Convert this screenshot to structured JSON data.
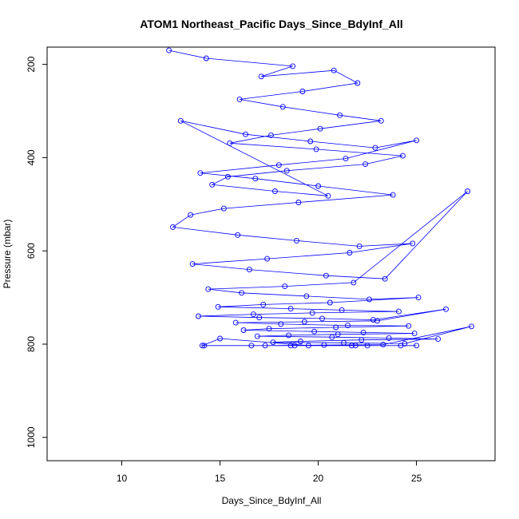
{
  "chart_data": {
    "type": "scatter",
    "title": "ATOM1 Northeast_Pacific Days_Since_BdyInf_All",
    "xlabel": "Days_Since_BdyInf_All",
    "ylabel": "Pressure (mbar)",
    "xlim": [
      6.2,
      29.0
    ],
    "ylim": [
      1050,
      163
    ],
    "y_inverted": true,
    "x_ticks": [
      10,
      15,
      20,
      25
    ],
    "y_ticks": [
      200,
      400,
      600,
      800,
      1000
    ],
    "x_tick_labels": [
      "10",
      "15",
      "20",
      "25"
    ],
    "y_tick_labels": [
      "200",
      "400",
      "600",
      "800",
      "1000"
    ],
    "grid": false,
    "legend": "none",
    "color": "#0000ff",
    "markers": "open-circle",
    "connected": true,
    "series": [
      {
        "x": [
          12.4,
          14.3,
          18.7,
          17.1,
          20.8,
          22.0,
          19.2,
          16.0,
          18.2,
          21.1,
          23.2,
          20.1,
          17.6,
          15.5,
          19.9,
          24.3,
          22.4,
          18.4,
          15.4,
          14.6,
          17.8,
          20.5,
          13.0,
          16.3,
          19.6,
          22.9,
          25.0,
          21.4,
          18.0,
          14.0,
          16.8,
          20.0,
          23.8,
          19.0,
          15.2,
          13.5,
          12.6,
          15.9,
          18.9,
          22.1,
          24.8,
          21.6,
          17.4,
          13.6,
          16.5,
          20.4,
          23.4,
          27.6,
          21.8,
          18.3,
          14.4,
          16.1,
          19.4,
          22.6,
          25.1,
          20.6,
          17.2,
          14.9,
          18.6,
          21.2,
          24.1,
          19.7,
          16.7,
          13.9,
          17.0,
          20.2,
          22.8,
          26.5,
          23.0,
          19.3,
          15.8,
          18.1,
          21.5,
          24.6,
          20.9,
          17.5,
          16.2,
          19.8,
          22.3,
          24.9,
          21.0,
          18.5,
          16.9,
          20.7,
          23.6,
          26.1,
          22.2,
          19.1,
          17.7,
          21.3,
          24.4,
          27.8,
          23.3,
          20.3,
          17.3,
          14.2,
          18.8,
          22.5,
          25.0,
          21.7,
          19.5,
          15.0,
          14.1,
          16.6,
          18.6,
          21.9,
          24.2
        ],
        "y": [
          170,
          187,
          204,
          226,
          213,
          240,
          258,
          275,
          291,
          309,
          321,
          338,
          352,
          369,
          382,
          396,
          414,
          428,
          441,
          458,
          472,
          482,
          321,
          350,
          365,
          379,
          363,
          402,
          416,
          433,
          445,
          461,
          480,
          496,
          509,
          523,
          549,
          566,
          578,
          590,
          584,
          604,
          617,
          628,
          640,
          653,
          660,
          472,
          668,
          676,
          682,
          690,
          697,
          704,
          700,
          711,
          715,
          720,
          724,
          727,
          730,
          733,
          736,
          740,
          743,
          745,
          748,
          725,
          750,
          752,
          754,
          757,
          760,
          761,
          764,
          767,
          770,
          773,
          775,
          777,
          779,
          781,
          783,
          785,
          787,
          789,
          791,
          794,
          796,
          797,
          799,
          762,
          801,
          802,
          803,
          803,
          803,
          803,
          803,
          803,
          803,
          788,
          803,
          803,
          803,
          803,
          803
        ]
      }
    ]
  }
}
